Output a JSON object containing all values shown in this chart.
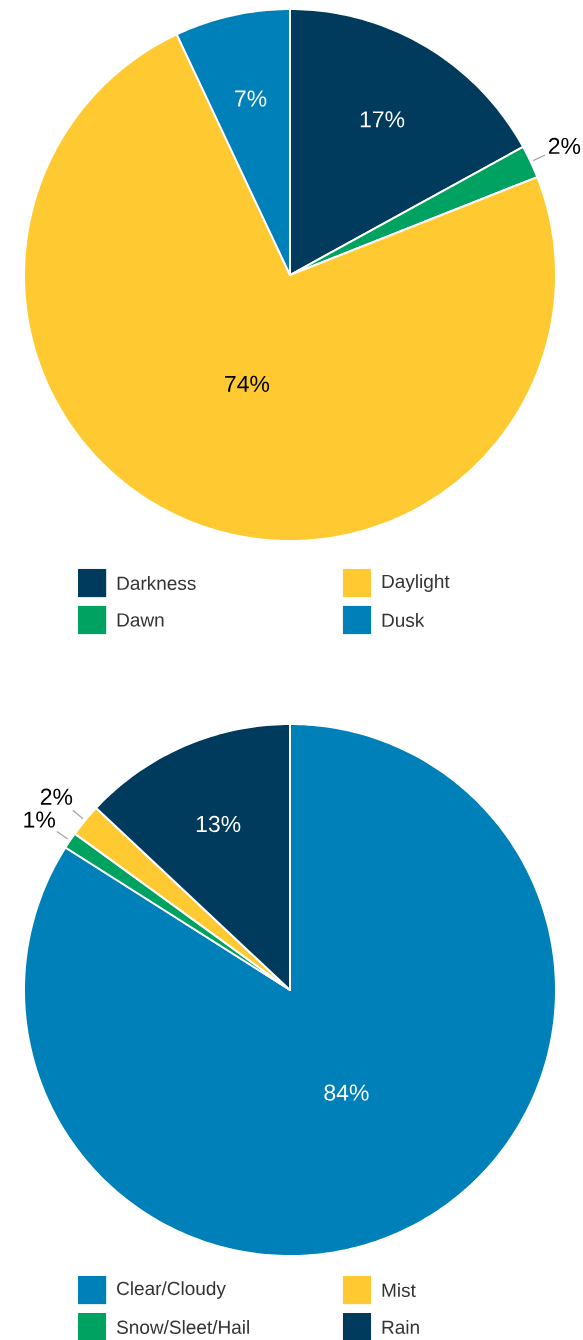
{
  "chart_data": [
    {
      "type": "pie",
      "categories": [
        "Darkness",
        "Dawn",
        "Daylight",
        "Dusk"
      ],
      "values": [
        17,
        2,
        74,
        7
      ],
      "value_labels": [
        "17%",
        "2%",
        "74%",
        "7%"
      ],
      "colors": [
        "#003a5c",
        "#00a261",
        "#ffca31",
        "#0080b9"
      ],
      "legend": "bottom"
    },
    {
      "type": "pie",
      "categories": [
        "Clear/Cloudy",
        "Snow/Sleet/Hail",
        "Mist",
        "Rain"
      ],
      "values": [
        84,
        1,
        2,
        13
      ],
      "value_labels": [
        "84%",
        "1%",
        "2%",
        "13%"
      ],
      "colors": [
        "#0080b9",
        "#00a261",
        "#ffca31",
        "#003a5c"
      ],
      "legend": "bottom"
    }
  ]
}
